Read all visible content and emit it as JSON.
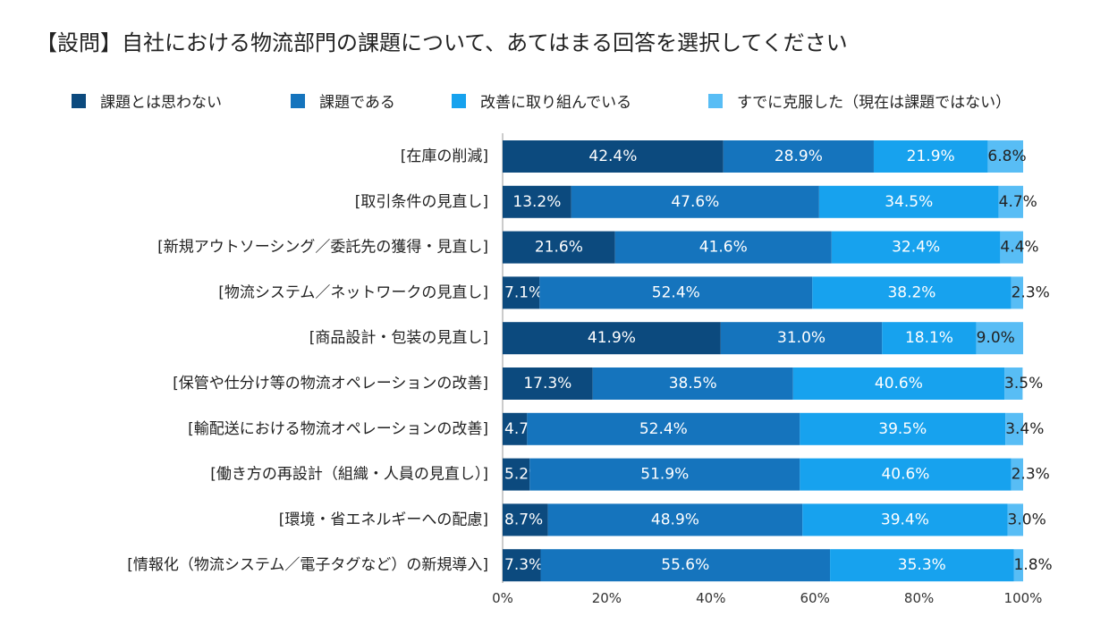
{
  "title": "【設問】自社における物流部門の課題について、あてはまる回答を選択してください",
  "colors": {
    "series": [
      "#0c4a7e",
      "#1574bd",
      "#17a2ee",
      "#58bdf5"
    ],
    "outside_label": "#222222",
    "inside_label": "#ffffff",
    "axis": "#999999"
  },
  "chart_data": {
    "type": "bar",
    "orientation": "horizontal",
    "stacked": true,
    "title": "",
    "xlabel": "",
    "ylabel": "",
    "xlim": [
      0,
      100
    ],
    "x_ticks": [
      "0%",
      "20%",
      "40%",
      "60%",
      "80%",
      "100%"
    ],
    "legend_position": "top",
    "categories": [
      "[在庫の削減]",
      "[取引条件の見直し]",
      "[新規アウトソーシング／委託先の獲得・見直し]",
      "[物流システム／ネットワークの見直し]",
      "[商品設計・包装の見直し]",
      "[保管や仕分け等の物流オペレーションの改善]",
      "[輸配送における物流オペレーションの改善]",
      "[働き方の再設計（組織・人員の見直し）]",
      "[環境・省エネルギーへの配慮]",
      "[情報化（物流システム／電子タグなど）の新規導入]"
    ],
    "series": [
      {
        "name": "課題とは思わない",
        "values": [
          42.4,
          13.2,
          21.6,
          7.1,
          41.9,
          17.3,
          4.7,
          5.2,
          8.7,
          7.3
        ],
        "labels": [
          "42.4%",
          "13.2%",
          "21.6%",
          "7.1%",
          "41.9%",
          "17.3%",
          "4.7%",
          "5.2%",
          "8.7%",
          "7.3%"
        ]
      },
      {
        "name": "課題である",
        "values": [
          28.9,
          47.6,
          41.6,
          52.4,
          31.0,
          38.5,
          52.4,
          51.9,
          48.9,
          55.6
        ],
        "labels": [
          "28.9%",
          "47.6%",
          "41.6%",
          "52.4%",
          "31.0%",
          "38.5%",
          "52.4%",
          "51.9%",
          "48.9%",
          "55.6%"
        ]
      },
      {
        "name": "改善に取り組んでいる",
        "values": [
          21.9,
          34.5,
          32.4,
          38.2,
          18.1,
          40.6,
          39.5,
          40.6,
          39.4,
          35.3
        ],
        "labels": [
          "21.9%",
          "34.5%",
          "32.4%",
          "38.2%",
          "18.1%",
          "40.6%",
          "39.5%",
          "40.6%",
          "39.4%",
          "35.3%"
        ]
      },
      {
        "name": "すでに克服した（現在は課題ではない）",
        "values": [
          6.8,
          4.7,
          4.4,
          2.3,
          9.0,
          3.5,
          3.4,
          2.3,
          3.0,
          1.8
        ],
        "labels": [
          "6.8%",
          "4.7%",
          "4.4%",
          "2.3%",
          "9.0%",
          "3.5%",
          "3.4%",
          "2.3%",
          "3.0%",
          "1.8%"
        ]
      }
    ]
  }
}
